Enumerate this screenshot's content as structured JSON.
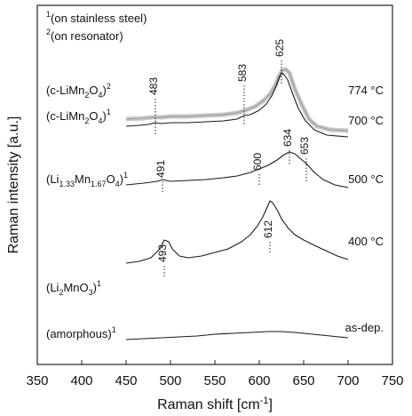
{
  "chart_data": {
    "type": "line",
    "xlabel": "Raman shift [cm",
    "xlabel_sup": "-1",
    "xlabel_end": "]",
    "ylabel": "Raman intensity [a.u.]",
    "xlim": [
      350,
      750
    ],
    "x_ticks": [
      350,
      400,
      450,
      500,
      550,
      600,
      650,
      700,
      750
    ],
    "notes": [
      {
        "sup": "1",
        "text": "(on stainless steel)"
      },
      {
        "sup": "2",
        "text": "(on resonator)"
      }
    ],
    "colors": {
      "primary": "#1a1a1a",
      "gray": "#9a9a9a",
      "gray_band": "#c8c8c8"
    },
    "series": [
      {
        "phase_parts": [
          {
            "t": "(c-LiMn"
          },
          {
            "t": "2",
            "sub": true
          },
          {
            "t": "O"
          },
          {
            "t": "4",
            "sub": true
          },
          {
            "t": ")"
          },
          {
            "t": "2",
            "sup": true
          }
        ],
        "temp": "774 °C",
        "color": "gray",
        "peaks": [],
        "points": [
          [
            450,
            78
          ],
          [
            470,
            77
          ],
          [
            480,
            76
          ],
          [
            490,
            76
          ],
          [
            500,
            75
          ],
          [
            520,
            75
          ],
          [
            540,
            74
          ],
          [
            560,
            73
          ],
          [
            575,
            71
          ],
          [
            585,
            68
          ],
          [
            595,
            64
          ],
          [
            605,
            57
          ],
          [
            612,
            50
          ],
          [
            618,
            40
          ],
          [
            622,
            30
          ],
          [
            626,
            23
          ],
          [
            630,
            22
          ],
          [
            634,
            26
          ],
          [
            640,
            44
          ],
          [
            648,
            62
          ],
          [
            656,
            78
          ],
          [
            665,
            86
          ],
          [
            680,
            90
          ],
          [
            700,
            91
          ]
        ]
      },
      {
        "phase_parts": [
          {
            "t": "(c-LiMn"
          },
          {
            "t": "2",
            "sub": true
          },
          {
            "t": "O"
          },
          {
            "t": "4",
            "sub": true
          },
          {
            "t": ")"
          },
          {
            "t": "1",
            "sup": true
          }
        ],
        "temp": "700 °C",
        "color": "primary",
        "peaks": [
          483,
          583,
          625
        ],
        "points": [
          [
            450,
            80
          ],
          [
            465,
            79
          ],
          [
            475,
            78
          ],
          [
            483,
            76
          ],
          [
            490,
            77
          ],
          [
            500,
            76
          ],
          [
            520,
            76
          ],
          [
            540,
            75
          ],
          [
            560,
            74
          ],
          [
            575,
            72
          ],
          [
            583,
            68
          ],
          [
            590,
            67
          ],
          [
            600,
            62
          ],
          [
            608,
            55
          ],
          [
            614,
            46
          ],
          [
            619,
            35
          ],
          [
            623,
            24
          ],
          [
            625,
            20
          ],
          [
            628,
            22
          ],
          [
            632,
            28
          ],
          [
            637,
            42
          ],
          [
            644,
            60
          ],
          [
            652,
            74
          ],
          [
            662,
            84
          ],
          [
            676,
            90
          ],
          [
            700,
            92
          ]
        ]
      },
      {
        "phase_parts": [
          {
            "t": "(Li"
          },
          {
            "t": "1.33",
            "sub": true
          },
          {
            "t": "Mn"
          },
          {
            "t": "1.67",
            "sub": true
          },
          {
            "t": "O"
          },
          {
            "t": "4",
            "sub": true
          },
          {
            "t": ")"
          },
          {
            "t": "1",
            "sup": true
          }
        ],
        "temp": "500 °C",
        "color": "primary",
        "peaks": [
          491,
          600,
          634,
          653
        ],
        "points": [
          [
            450,
            84
          ],
          [
            470,
            82
          ],
          [
            485,
            80
          ],
          [
            491,
            78
          ],
          [
            500,
            80
          ],
          [
            520,
            79
          ],
          [
            540,
            78
          ],
          [
            560,
            76
          ],
          [
            575,
            74
          ],
          [
            590,
            70
          ],
          [
            600,
            66
          ],
          [
            610,
            62
          ],
          [
            620,
            56
          ],
          [
            628,
            50
          ],
          [
            634,
            47
          ],
          [
            640,
            49
          ],
          [
            647,
            55
          ],
          [
            653,
            60
          ],
          [
            662,
            70
          ],
          [
            672,
            78
          ],
          [
            685,
            84
          ],
          [
            700,
            87
          ]
        ]
      },
      {
        "phase_parts": [
          {
            "t": "(Li"
          },
          {
            "t": "2",
            "sub": true
          },
          {
            "t": "MnO"
          },
          {
            "t": "3",
            "sub": true
          },
          {
            "t": ")"
          },
          {
            "t": "1",
            "sup": true
          }
        ],
        "temp": "400 °C",
        "color": "primary",
        "peaks": [
          493,
          612
        ],
        "points": [
          [
            450,
            88
          ],
          [
            465,
            86
          ],
          [
            478,
            82
          ],
          [
            488,
            72
          ],
          [
            493,
            62
          ],
          [
            498,
            64
          ],
          [
            502,
            72
          ],
          [
            510,
            80
          ],
          [
            520,
            82
          ],
          [
            535,
            80
          ],
          [
            550,
            76
          ],
          [
            565,
            72
          ],
          [
            580,
            64
          ],
          [
            590,
            56
          ],
          [
            598,
            46
          ],
          [
            604,
            36
          ],
          [
            609,
            25
          ],
          [
            612,
            18
          ],
          [
            615,
            20
          ],
          [
            620,
            28
          ],
          [
            625,
            38
          ],
          [
            632,
            48
          ],
          [
            640,
            56
          ],
          [
            650,
            62
          ],
          [
            662,
            68
          ],
          [
            675,
            74
          ],
          [
            688,
            80
          ],
          [
            700,
            84
          ]
        ]
      },
      {
        "phase_parts": [
          {
            "t": "(amorphous)"
          },
          {
            "t": "1",
            "sup": true
          }
        ],
        "temp": "as-dep.",
        "color": "primary",
        "peaks": [],
        "points": [
          [
            450,
            86
          ],
          [
            470,
            85
          ],
          [
            490,
            84
          ],
          [
            510,
            83
          ],
          [
            530,
            82
          ],
          [
            550,
            80
          ],
          [
            570,
            79
          ],
          [
            590,
            78
          ],
          [
            610,
            77
          ],
          [
            625,
            77
          ],
          [
            640,
            78
          ],
          [
            660,
            80
          ],
          [
            680,
            82
          ],
          [
            700,
            84
          ]
        ]
      }
    ]
  }
}
